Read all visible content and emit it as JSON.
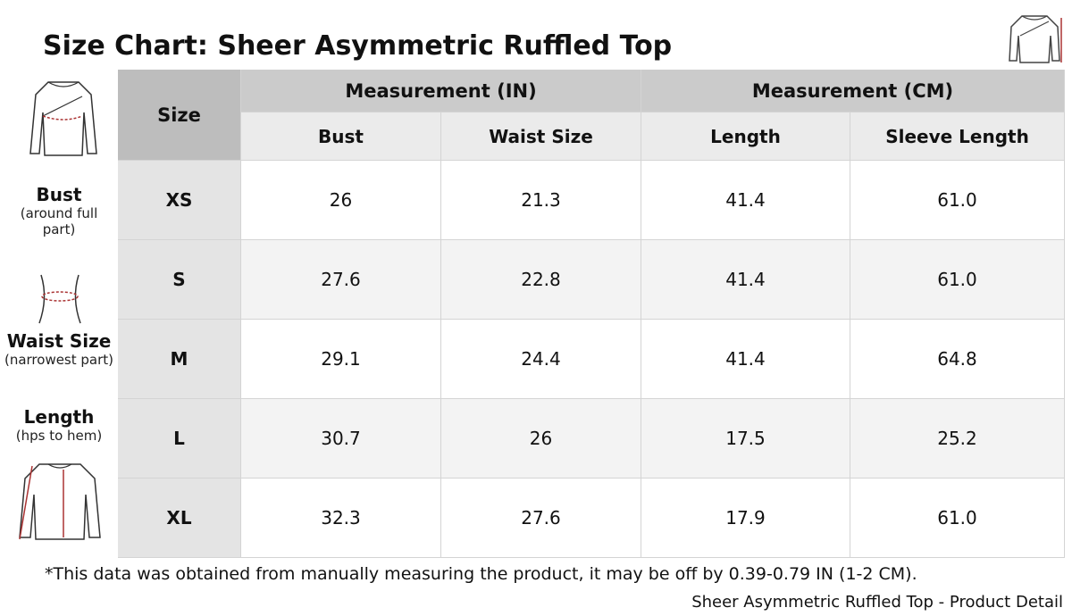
{
  "title": "Size Chart: Sheer Asymmetric Ruffled Top",
  "table": {
    "size_header": "Size",
    "groups": [
      "Measurement (IN)",
      "Measurement (CM)"
    ],
    "columns": [
      "Bust",
      "Waist Size",
      "Length",
      "Sleeve Length"
    ],
    "rows": [
      [
        "XS",
        "26",
        "21.3",
        "41.4",
        "61.0"
      ],
      [
        "S",
        "27.6",
        "22.8",
        "41.4",
        "61.0"
      ],
      [
        "M",
        "29.1",
        "24.4",
        "41.4",
        "64.8"
      ],
      [
        "L",
        "30.7",
        "26",
        "17.5",
        "25.2"
      ],
      [
        "XL",
        "32.3",
        "27.6",
        "17.9",
        "61.0"
      ]
    ]
  },
  "guide": [
    {
      "label": "Bust",
      "note": "(around full part)"
    },
    {
      "label": "Waist Size",
      "note": "(narrowest part)"
    },
    {
      "label": "Length",
      "note": "(hps to hem)"
    }
  ],
  "footnote": "*This data was obtained from manually measuring the product, it may be off by 0.39-0.79 IN (1-2 CM).",
  "caption": "Sheer Asymmetric Ruffled Top - Product Detail"
}
